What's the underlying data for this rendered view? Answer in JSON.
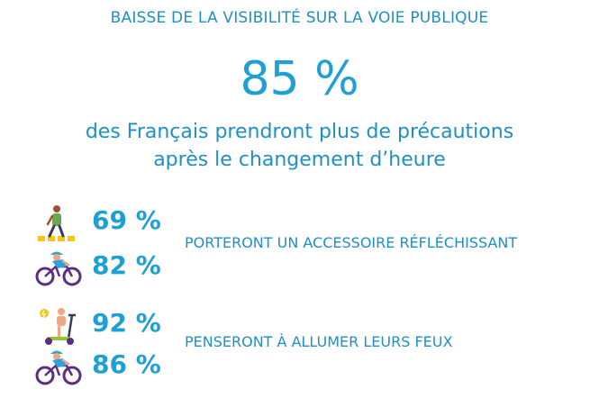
{
  "header": {
    "title": "BAISSE DE LA VISIBILITÉ SUR LA VOIE PUBLIQUE",
    "big_value": "85 %",
    "subtitle_line1": "des Français prendront plus de précautions",
    "subtitle_line2": "après le changement d’heure"
  },
  "group_reflective": {
    "label": "PORTERONT UN ACCESSOIRE RÉFLÉCHISSANT",
    "items": [
      {
        "icon": "pedestrian-icon",
        "value": "69 %"
      },
      {
        "icon": "cyclist-icon",
        "value": "82 %"
      }
    ]
  },
  "group_lights": {
    "label": "PENSERONT À ALLUMER LEURS FEUX",
    "items": [
      {
        "icon": "scooter-icon",
        "value": "92 %"
      },
      {
        "icon": "cyclist-icon",
        "value": "86 %"
      }
    ]
  },
  "colors": {
    "primary_blue": "#1f9fd6",
    "text_blue": "#1f8fc4",
    "bike_purple": "#5b2d83",
    "helmet_blue": "#2fa3d9",
    "skin": "#f4a582",
    "crosswalk_yellow": "#f5c518",
    "scooter_green": "#8fc93a"
  }
}
